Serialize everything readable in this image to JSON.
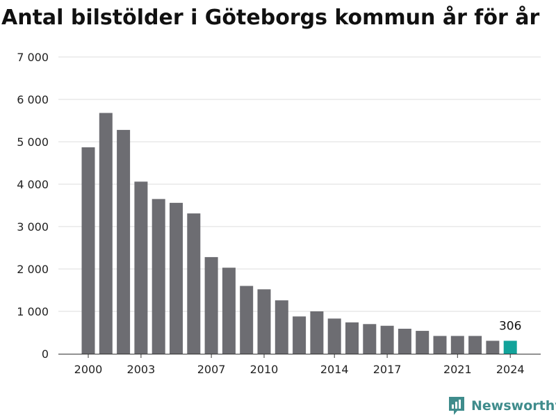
{
  "chart_data": {
    "type": "bar",
    "title": "Antal bilstölder i Göteborgs kommun år för år",
    "categories": [
      "2000",
      "2001",
      "2002",
      "2003",
      "2004",
      "2005",
      "2006",
      "2007",
      "2008",
      "2009",
      "2010",
      "2011",
      "2012",
      "2013",
      "2014",
      "2015",
      "2016",
      "2017",
      "2018",
      "2019",
      "2020",
      "2021",
      "2022",
      "2023",
      "2024"
    ],
    "values": [
      4870,
      5680,
      5280,
      4060,
      3650,
      3560,
      3310,
      2280,
      2030,
      1600,
      1520,
      1260,
      880,
      1000,
      830,
      740,
      700,
      660,
      590,
      540,
      420,
      420,
      420,
      306,
      306
    ],
    "ylim": [
      0,
      7000
    ],
    "yticks": [
      0,
      1000,
      2000,
      3000,
      4000,
      5000,
      6000,
      7000
    ],
    "ytick_labels": [
      "0",
      "1 000",
      "2 000",
      "3 000",
      "4 000",
      "5 000",
      "6 000",
      "7 000"
    ],
    "xtick_labels": [
      "2000",
      "2003",
      "2007",
      "2010",
      "2014",
      "2017",
      "2021",
      "2024"
    ],
    "highlight_label": "306",
    "grid": true,
    "bar_color": "#6d6d72",
    "highlight_color": "#12a39a",
    "grid_color": "#dcdcdc"
  },
  "brand": {
    "name": "Newsworthy",
    "icon": "newsworthy-logo-icon",
    "color": "#3f8c8c"
  }
}
